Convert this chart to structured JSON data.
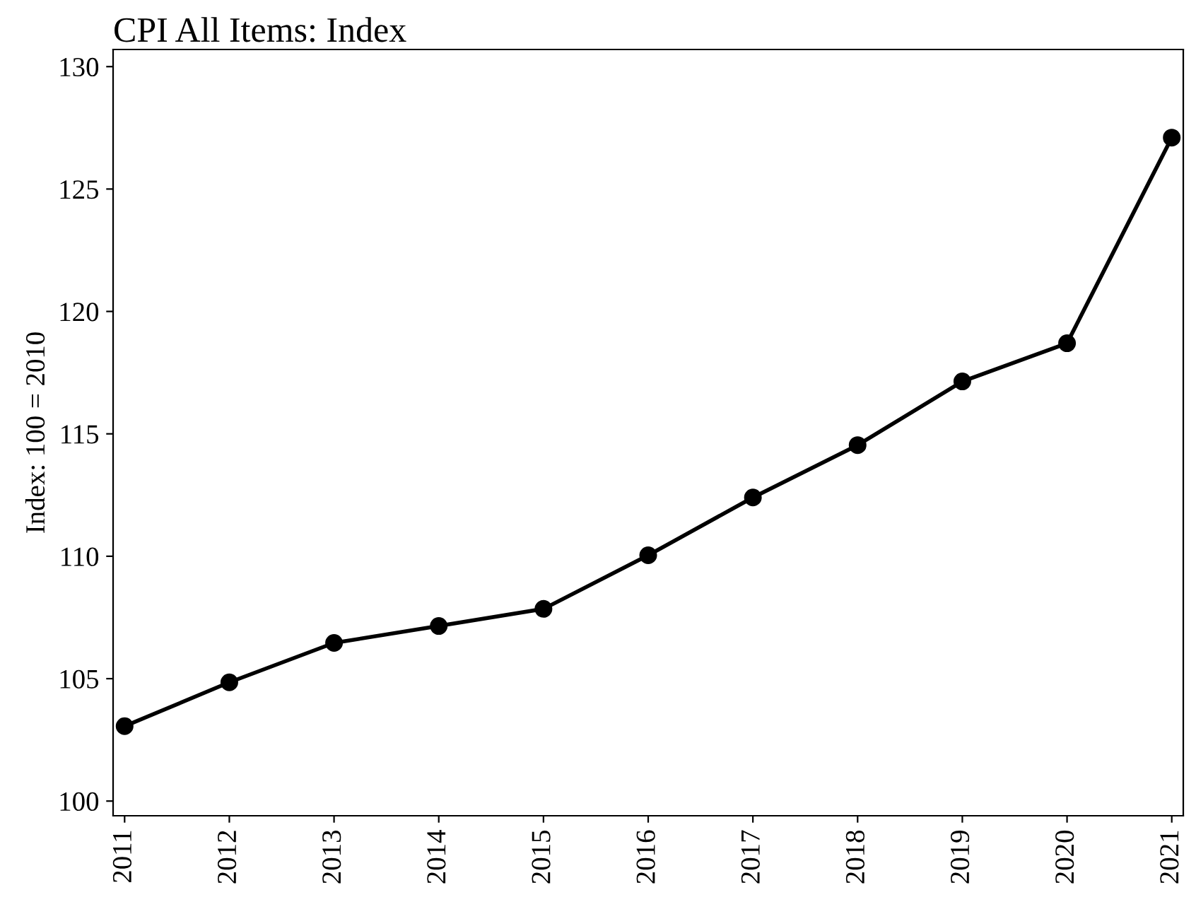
{
  "chart_data": {
    "type": "line",
    "title": "CPI All Items: Index",
    "ylabel": "Index: 100 = 2010",
    "x": [
      2011,
      2012,
      2013,
      2014,
      2015,
      2016,
      2017,
      2018,
      2019,
      2020,
      2021
    ],
    "series": [
      {
        "color": "#000000",
        "values": [
          103.06,
          104.85,
          106.46,
          107.15,
          107.85,
          110.04,
          112.4,
          114.54,
          117.14,
          118.7,
          127.1
        ]
      }
    ],
    "xlim": [
      2010.89,
      2021.11
    ],
    "xticks": [
      2011,
      2012,
      2013,
      2014,
      2015,
      2016,
      2017,
      2018,
      2019,
      2020,
      2021
    ],
    "ylim": [
      99.4,
      130.7
    ],
    "yticks": [
      100,
      105,
      110,
      115,
      120,
      125,
      130
    ],
    "marker": "circle",
    "line_style": "solid",
    "grid": false,
    "legend": false
  }
}
